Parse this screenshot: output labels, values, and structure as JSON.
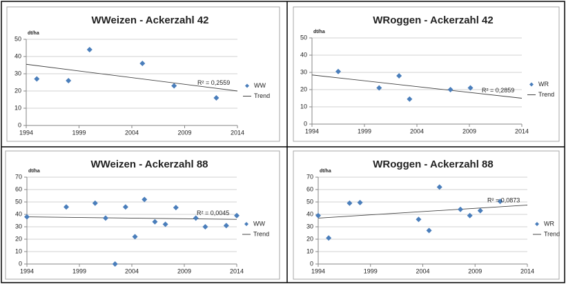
{
  "chart_data": [
    {
      "type": "scatter",
      "title": "WWeizen - Ackerzahl 42",
      "y_label": "dt/ha",
      "x": [
        1995,
        1998,
        2000,
        2005,
        2008,
        2012
      ],
      "series": [
        {
          "name": "WW",
          "color": "#4a7ebb",
          "values": [
            27,
            26,
            44,
            36,
            23,
            16
          ]
        }
      ],
      "trend": {
        "name": "Trend",
        "color": "#404040",
        "x": [
          1994,
          2014
        ],
        "values": [
          35.5,
          20
        ]
      },
      "annotation": "R² = 0,2559",
      "xlim": [
        1994,
        2014
      ],
      "xticks": [
        1994,
        1999,
        2004,
        2009,
        2014
      ],
      "ylim": [
        0,
        50
      ],
      "yticks": [
        0,
        10,
        20,
        30,
        40,
        50
      ],
      "grid": true,
      "legend": "right"
    },
    {
      "type": "scatter",
      "title": "WRoggen - Ackerzahl 42",
      "y_label": "dt/ha",
      "x": [
        1996.5,
        2000.4,
        2002.3,
        2003.3,
        2007.2,
        2009.1
      ],
      "series": [
        {
          "name": "WR",
          "color": "#4a7ebb",
          "values": [
            30.5,
            21,
            28,
            14.5,
            20,
            21
          ]
        }
      ],
      "trend": {
        "name": "Trend",
        "color": "#404040",
        "x": [
          1994,
          2014
        ],
        "values": [
          28.5,
          15
        ]
      },
      "annotation": "R² = 0,2859",
      "xlim": [
        1994,
        2014
      ],
      "xticks": [
        1994,
        1999,
        2004,
        2009,
        2014
      ],
      "ylim": [
        0,
        50
      ],
      "yticks": [
        0,
        10,
        20,
        30,
        40,
        50
      ],
      "grid": true,
      "legend": "right"
    },
    {
      "type": "scatter",
      "title": "WWeizen - Ackerzahl 88",
      "y_label": "dt/ha",
      "x": [
        1994,
        1997.75,
        2000.5,
        2001.5,
        2002.4,
        2003.4,
        2004.3,
        2005.2,
        2006.2,
        2007.2,
        2008.2,
        2010.1,
        2011,
        2013,
        2014
      ],
      "series": [
        {
          "name": "WW",
          "color": "#4a7ebb",
          "values": [
            38,
            46,
            49,
            37,
            0,
            46,
            22,
            52,
            34,
            32,
            45.5,
            37,
            30,
            31,
            39
          ]
        }
      ],
      "trend": {
        "name": "Trend",
        "color": "#404040",
        "x": [
          1994,
          2014
        ],
        "values": [
          38,
          36
        ]
      },
      "annotation": "R² = 0,0045",
      "xlim": [
        1994,
        2014
      ],
      "xticks": [
        1994,
        1999,
        2004,
        2009,
        2014
      ],
      "ylim": [
        0,
        70
      ],
      "yticks": [
        0,
        10,
        20,
        30,
        40,
        50,
        60,
        70
      ],
      "grid": true,
      "legend": "right"
    },
    {
      "type": "scatter",
      "title": "WRoggen - Ackerzahl 88",
      "y_label": "dt/ha",
      "x": [
        1994,
        1995,
        1997,
        1998,
        2003.6,
        2004.6,
        2005.6,
        2007.6,
        2008.5,
        2009.5,
        2011.4
      ],
      "series": [
        {
          "name": "WR",
          "color": "#4a7ebb",
          "values": [
            39,
            21,
            49,
            49.5,
            36,
            27,
            62,
            44,
            39,
            43,
            50.5
          ]
        }
      ],
      "trend": {
        "name": "Trend",
        "color": "#404040",
        "x": [
          1994,
          2014
        ],
        "values": [
          37,
          47.5
        ]
      },
      "annotation": "R² = 0,0873",
      "xlim": [
        1994,
        2014
      ],
      "xticks": [
        1994,
        1999,
        2004,
        2009,
        2014
      ],
      "ylim": [
        0,
        70
      ],
      "yticks": [
        0,
        10,
        20,
        30,
        40,
        50,
        60,
        70
      ],
      "grid": true,
      "legend": "right"
    }
  ]
}
